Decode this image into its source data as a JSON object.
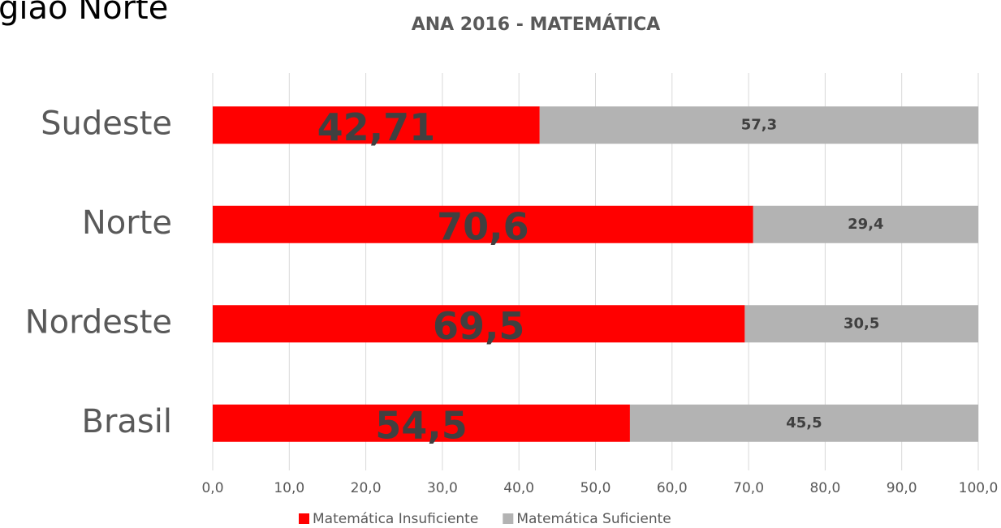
{
  "chart_data": {
    "type": "stacked_barh",
    "annotation": "gião Norte",
    "title": "ANA 2016 - MATEMÁTICA",
    "categories": [
      "Sudeste",
      "Norte",
      "Nordeste",
      "Brasil"
    ],
    "series": [
      {
        "name": "Matemática Insuficiente",
        "color": "#ff0000",
        "values": [
          42.71,
          70.6,
          69.5,
          54.5
        ],
        "value_labels": [
          "42,71",
          "70,6",
          "69,5",
          "54,5"
        ]
      },
      {
        "name": "Matemática Suficiente",
        "color": "#b3b3b3",
        "values": [
          57.3,
          29.4,
          30.5,
          45.5
        ],
        "value_labels": [
          "57,3",
          "29,4",
          "30,5",
          "45,5"
        ]
      }
    ],
    "xlim": [
      0,
      100
    ],
    "xticks": [
      {
        "value": 0,
        "label": "0,0"
      },
      {
        "value": 10,
        "label": "10,0"
      },
      {
        "value": 20,
        "label": "20,0"
      },
      {
        "value": 30,
        "label": "30,0"
      },
      {
        "value": 40,
        "label": "40,0"
      },
      {
        "value": 50,
        "label": "50,0"
      },
      {
        "value": 60,
        "label": "60,0"
      },
      {
        "value": 70,
        "label": "70,0"
      },
      {
        "value": 80,
        "label": "80,0"
      },
      {
        "value": 90,
        "label": "90,0"
      },
      {
        "value": 100,
        "label": "100,0"
      }
    ],
    "grid": true,
    "legend": "bottom"
  }
}
